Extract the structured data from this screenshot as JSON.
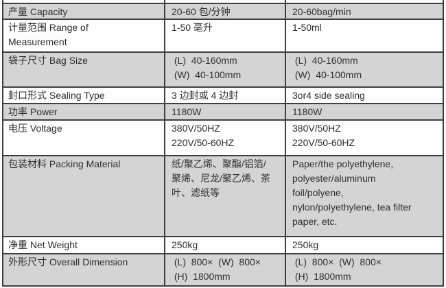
{
  "table": {
    "columns": [
      "parameter",
      "value_cn",
      "value_en"
    ],
    "rows": [
      {
        "key": "capacity",
        "param": [
          "产量 Capacity"
        ],
        "value_cn": [
          "20-60 包/分钟"
        ],
        "value_en": [
          "20-60bag/min"
        ]
      },
      {
        "key": "range-of-measurement",
        "param": [
          "计量范围 Range of",
          "Measurement"
        ],
        "value_cn": [
          "1-50 毫升"
        ],
        "value_en": [
          "1-50ml"
        ]
      },
      {
        "key": "bag-size",
        "param": [
          "袋子尺寸 Bag Size"
        ],
        "value_cn": [
          " (L)  40-160mm",
          " (W)  40-100mm"
        ],
        "value_en": [
          " (L)  40-160mm",
          " (W)  40-100mm"
        ]
      },
      {
        "key": "sealing-type",
        "param": [
          "封口形式 Sealing Type"
        ],
        "value_cn": [
          "3 边封或 4 边封"
        ],
        "value_en": [
          "3or4 side sealing"
        ]
      },
      {
        "key": "power",
        "param": [
          "功率 Power"
        ],
        "value_cn": [
          "1180W"
        ],
        "value_en": [
          "1180W"
        ]
      },
      {
        "key": "voltage",
        "param": [
          "电压 Voltage"
        ],
        "value_cn": [
          "380V/50HZ",
          "220V/50-60HZ"
        ],
        "value_en": [
          "380V/50HZ",
          "220V/50-60HZ"
        ]
      },
      {
        "key": "packing-material",
        "param": [
          "包装材料 Packing Material"
        ],
        "value_cn": [
          "纸/聚乙烯、聚酯/铝箔/",
          "聚烯、尼龙/聚乙烯、茶",
          "叶、滤纸等"
        ],
        "value_en": [
          "Paper/the polyethylene,",
          "polyester/aluminum",
          "foil/polyene,",
          "nylon/polyethylene, tea filter",
          "paper, etc."
        ]
      },
      {
        "key": "net-weight",
        "param": [
          "净重 Net Weight"
        ],
        "value_cn": [
          "250kg"
        ],
        "value_en": [
          "250kg"
        ]
      },
      {
        "key": "overall-dimension",
        "param": [
          "外形尺寸 Overall Dimension"
        ],
        "value_cn": [
          " (L)  800×  (W)  800×",
          " (H)  1800mm"
        ],
        "value_en": [
          " (L)  800×  (W)  800×",
          " (H)  1800mm"
        ]
      }
    ]
  },
  "colors": {
    "row_shade_gray": "#d4d4d4",
    "row_shade_white": "#fdfdfd",
    "border": "#3f3f3f",
    "text": "#2e2e2e"
  }
}
